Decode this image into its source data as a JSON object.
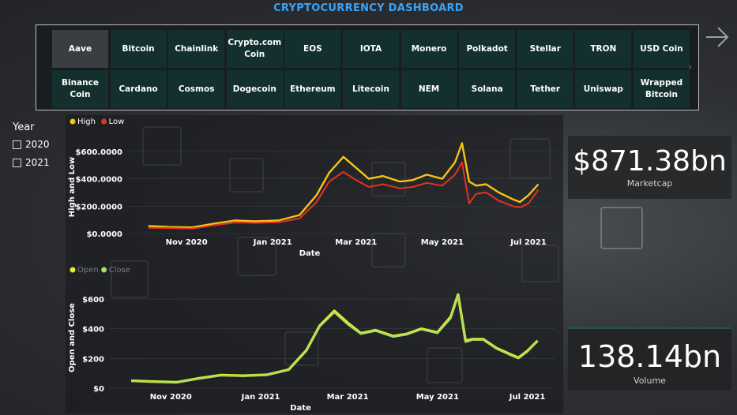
{
  "header": {
    "title": "CRYPTOCURRENCY DASHBOARD"
  },
  "coins": [
    {
      "label": "Aave",
      "selected": true
    },
    {
      "label": "Bitcoin",
      "selected": false
    },
    {
      "label": "Chainlink",
      "selected": false
    },
    {
      "label": "Crypto.com Coin",
      "selected": false
    },
    {
      "label": "EOS",
      "selected": false
    },
    {
      "label": "IOTA",
      "selected": false
    },
    {
      "label": "Monero",
      "selected": false
    },
    {
      "label": "Polkadot",
      "selected": false
    },
    {
      "label": "Stellar",
      "selected": false
    },
    {
      "label": "TRON",
      "selected": false
    },
    {
      "label": "USD Coin",
      "selected": false
    },
    {
      "label": "Binance Coin",
      "selected": false
    },
    {
      "label": "Cardano",
      "selected": false
    },
    {
      "label": "Cosmos",
      "selected": false
    },
    {
      "label": "Dogecoin",
      "selected": false
    },
    {
      "label": "Ethereum",
      "selected": false
    },
    {
      "label": "Litecoin",
      "selected": false
    },
    {
      "label": "NEM",
      "selected": false
    },
    {
      "label": "Solana",
      "selected": false
    },
    {
      "label": "Tether",
      "selected": false
    },
    {
      "label": "Uniswap",
      "selected": false
    },
    {
      "label": "Wrapped Bitcoin",
      "selected": false
    }
  ],
  "year_filter": {
    "title": "Year",
    "options": [
      {
        "label": "2020",
        "checked": false
      },
      {
        "label": "2021",
        "checked": false
      }
    ]
  },
  "cards": {
    "marketcap": {
      "value": "$871.38bn",
      "label": "Marketcap"
    },
    "volume": {
      "value": "138.14bn",
      "label": "Volume"
    }
  },
  "colors": {
    "title": "#3aa3f5",
    "high": "#f5c518",
    "low": "#e53222",
    "open": "#e7ec2a",
    "close": "#a8dc6a"
  },
  "chart_data": [
    {
      "type": "line",
      "xlabel": "Date",
      "ylabel": "High and Low",
      "legend_position": "top-left",
      "x_ticks": [
        "Nov 2020",
        "Jan 2021",
        "Mar 2021",
        "May 2021",
        "Jul 2021"
      ],
      "y_ticks": [
        "$0.0000",
        "$200.0000",
        "$400.0000",
        "$600.0000"
      ],
      "ylim": [
        0,
        680
      ],
      "x": [
        "2020-10-05",
        "2020-10-20",
        "2020-11-05",
        "2020-11-20",
        "2020-12-05",
        "2020-12-20",
        "2021-01-05",
        "2021-01-20",
        "2021-02-01",
        "2021-02-10",
        "2021-02-20",
        "2021-03-01",
        "2021-03-10",
        "2021-03-20",
        "2021-04-01",
        "2021-04-10",
        "2021-04-20",
        "2021-05-01",
        "2021-05-10",
        "2021-05-15",
        "2021-05-20",
        "2021-05-25",
        "2021-06-01",
        "2021-06-10",
        "2021-06-20",
        "2021-06-25",
        "2021-07-01",
        "2021-07-08"
      ],
      "series": [
        {
          "name": "High",
          "values": [
            55,
            48,
            45,
            72,
            95,
            90,
            95,
            135,
            280,
            445,
            560,
            480,
            400,
            420,
            380,
            390,
            430,
            400,
            520,
            660,
            380,
            350,
            360,
            300,
            250,
            230,
            280,
            360
          ]
        },
        {
          "name": "Low",
          "values": [
            42,
            40,
            36,
            60,
            80,
            78,
            82,
            110,
            230,
            380,
            450,
            390,
            340,
            360,
            330,
            340,
            370,
            350,
            430,
            520,
            220,
            290,
            300,
            240,
            200,
            190,
            220,
            320
          ]
        }
      ]
    },
    {
      "type": "line",
      "xlabel": "Date",
      "ylabel": "Open and Close",
      "legend_position": "top-left",
      "x_ticks": [
        "Nov 2020",
        "Jan 2021",
        "Mar 2021",
        "May 2021",
        "Jul 2021"
      ],
      "y_ticks": [
        "$0",
        "$200",
        "$400",
        "$600"
      ],
      "ylim": [
        0,
        680
      ],
      "x": [
        "2020-10-05",
        "2020-10-20",
        "2020-11-05",
        "2020-11-20",
        "2020-12-05",
        "2020-12-20",
        "2021-01-05",
        "2021-01-20",
        "2021-02-01",
        "2021-02-10",
        "2021-02-20",
        "2021-03-01",
        "2021-03-10",
        "2021-03-20",
        "2021-04-01",
        "2021-04-10",
        "2021-04-20",
        "2021-05-01",
        "2021-05-10",
        "2021-05-15",
        "2021-05-20",
        "2021-05-25",
        "2021-06-01",
        "2021-06-10",
        "2021-06-20",
        "2021-06-25",
        "2021-07-01",
        "2021-07-08"
      ],
      "series": [
        {
          "name": "Open",
          "values": [
            50,
            44,
            40,
            66,
            88,
            84,
            90,
            125,
            255,
            420,
            520,
            440,
            370,
            390,
            350,
            365,
            400,
            375,
            480,
            630,
            320,
            330,
            330,
            270,
            225,
            205,
            250,
            320
          ]
        },
        {
          "name": "Close",
          "values": [
            48,
            42,
            38,
            64,
            86,
            82,
            88,
            122,
            250,
            415,
            510,
            430,
            365,
            385,
            345,
            360,
            395,
            370,
            470,
            620,
            310,
            325,
            325,
            265,
            220,
            200,
            245,
            318
          ]
        }
      ]
    }
  ]
}
